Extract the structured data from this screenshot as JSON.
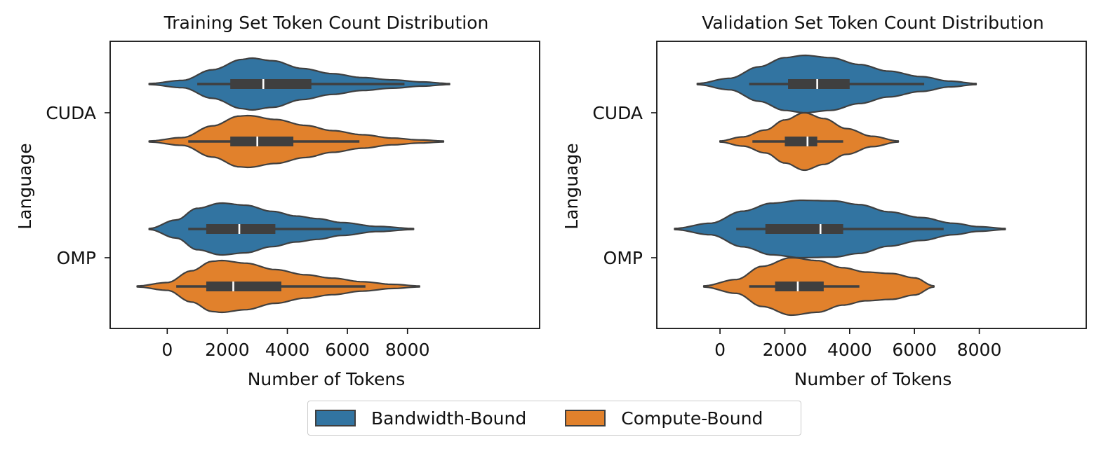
{
  "colors": {
    "bandwidth": "#3274a1",
    "compute": "#e1812c",
    "edge": "#3f3f3f"
  },
  "legend": {
    "items": [
      {
        "label": "Bandwidth-Bound",
        "color": "#3274a1"
      },
      {
        "label": "Compute-Bound",
        "color": "#e1812c"
      }
    ]
  },
  "chart_data": [
    {
      "type": "violin",
      "orientation": "horizontal",
      "title": "Training Set Token Count Distribution",
      "xlabel": "Number of Tokens",
      "ylabel": "Language",
      "categories": [
        "CUDA",
        "OMP"
      ],
      "xlim": [
        -1900,
        12400
      ],
      "xticks": [
        0,
        2000,
        4000,
        6000,
        8000
      ],
      "xtick_labels": [
        "0",
        "2000",
        "4000",
        "6000",
        "8000"
      ],
      "series": [
        {
          "name": "Bandwidth-Bound",
          "violins": [
            {
              "category": "CUDA",
              "min": -600,
              "max": 9400,
              "whisker_low": 1000,
              "whisker_high": 7900,
              "q1": 2100,
              "median": 3200,
              "q3": 4800,
              "density": [
                [
                  -600,
                  0.02
                ],
                [
                  500,
                  0.14
                ],
                [
                  1500,
                  0.55
                ],
                [
                  2500,
                  0.95
                ],
                [
                  2800,
                  1.0
                ],
                [
                  3500,
                  0.9
                ],
                [
                  4500,
                  0.6
                ],
                [
                  5500,
                  0.4
                ],
                [
                  6500,
                  0.25
                ],
                [
                  7500,
                  0.16
                ],
                [
                  8500,
                  0.08
                ],
                [
                  9400,
                  0.02
                ]
              ]
            },
            {
              "category": "OMP",
              "min": -600,
              "max": 8200,
              "whisker_low": 700,
              "whisker_high": 5800,
              "q1": 1300,
              "median": 2400,
              "q3": 3600,
              "density": [
                [
                  -600,
                  0.02
                ],
                [
                  300,
                  0.35
                ],
                [
                  1000,
                  0.8
                ],
                [
                  1800,
                  1.0
                ],
                [
                  2600,
                  0.92
                ],
                [
                  3500,
                  0.68
                ],
                [
                  4300,
                  0.5
                ],
                [
                  5000,
                  0.4
                ],
                [
                  5800,
                  0.25
                ],
                [
                  7000,
                  0.1
                ],
                [
                  8200,
                  0.02
                ]
              ]
            }
          ]
        },
        {
          "name": "Compute-Bound",
          "violins": [
            {
              "category": "CUDA",
              "min": -600,
              "max": 9200,
              "whisker_low": 700,
              "whisker_high": 6400,
              "q1": 2100,
              "median": 3000,
              "q3": 4200,
              "density": [
                [
                  -600,
                  0.02
                ],
                [
                  500,
                  0.15
                ],
                [
                  1500,
                  0.6
                ],
                [
                  2400,
                  0.98
                ],
                [
                  2700,
                  1.0
                ],
                [
                  3600,
                  0.85
                ],
                [
                  4600,
                  0.62
                ],
                [
                  5500,
                  0.42
                ],
                [
                  6500,
                  0.26
                ],
                [
                  7500,
                  0.13
                ],
                [
                  8400,
                  0.06
                ],
                [
                  9200,
                  0.02
                ]
              ]
            },
            {
              "category": "OMP",
              "min": -1000,
              "max": 8400,
              "whisker_low": 300,
              "whisker_high": 6600,
              "q1": 1300,
              "median": 2200,
              "q3": 3800,
              "density": [
                [
                  -1000,
                  0.02
                ],
                [
                  0,
                  0.15
                ],
                [
                  800,
                  0.6
                ],
                [
                  1500,
                  0.97
                ],
                [
                  1800,
                  1.0
                ],
                [
                  2600,
                  0.9
                ],
                [
                  3600,
                  0.65
                ],
                [
                  4600,
                  0.45
                ],
                [
                  5500,
                  0.32
                ],
                [
                  6500,
                  0.18
                ],
                [
                  7500,
                  0.08
                ],
                [
                  8400,
                  0.02
                ]
              ]
            }
          ]
        }
      ]
    },
    {
      "type": "violin",
      "orientation": "horizontal",
      "title": "Validation Set Token Count Distribution",
      "xlabel": "Number of Tokens",
      "ylabel": "Language",
      "categories": [
        "CUDA",
        "OMP"
      ],
      "xlim": [
        -1950,
        11300
      ],
      "xticks": [
        0,
        2000,
        4000,
        6000,
        8000
      ],
      "xtick_labels": [
        "0",
        "2000",
        "4000",
        "6000",
        "8000"
      ],
      "series": [
        {
          "name": "Bandwidth-Bound",
          "violins": [
            {
              "category": "CUDA",
              "min": -700,
              "max": 7900,
              "whisker_low": 900,
              "whisker_high": 6300,
              "q1": 2100,
              "median": 3000,
              "q3": 4000,
              "density": [
                [
                  -700,
                  0.02
                ],
                [
                  300,
                  0.2
                ],
                [
                  1200,
                  0.6
                ],
                [
                  2000,
                  0.92
                ],
                [
                  2600,
                  1.0
                ],
                [
                  3400,
                  0.92
                ],
                [
                  4300,
                  0.68
                ],
                [
                  5200,
                  0.45
                ],
                [
                  6200,
                  0.26
                ],
                [
                  7100,
                  0.1
                ],
                [
                  7900,
                  0.02
                ]
              ]
            },
            {
              "category": "OMP",
              "min": -1400,
              "max": 8800,
              "whisker_low": 500,
              "whisker_high": 6900,
              "q1": 1400,
              "median": 3100,
              "q3": 3800,
              "density": [
                [
                  -1400,
                  0.02
                ],
                [
                  -300,
                  0.2
                ],
                [
                  700,
                  0.62
                ],
                [
                  1600,
                  0.9
                ],
                [
                  2500,
                  1.0
                ],
                [
                  3500,
                  0.98
                ],
                [
                  4300,
                  0.85
                ],
                [
                  5200,
                  0.6
                ],
                [
                  6200,
                  0.4
                ],
                [
                  7200,
                  0.2
                ],
                [
                  8000,
                  0.08
                ],
                [
                  8800,
                  0.02
                ]
              ]
            }
          ]
        },
        {
          "name": "Compute-Bound",
          "violins": [
            {
              "category": "CUDA",
              "min": 0,
              "max": 5500,
              "whisker_low": 1000,
              "whisker_high": 3800,
              "q1": 2000,
              "median": 2700,
              "q3": 3000,
              "density": [
                [
                  0,
                  0.02
                ],
                [
                  700,
                  0.16
                ],
                [
                  1400,
                  0.4
                ],
                [
                  2000,
                  0.75
                ],
                [
                  2600,
                  1.0
                ],
                [
                  3200,
                  0.8
                ],
                [
                  3900,
                  0.45
                ],
                [
                  4700,
                  0.18
                ],
                [
                  5500,
                  0.02
                ]
              ]
            },
            {
              "category": "OMP",
              "min": -500,
              "max": 6600,
              "whisker_low": 900,
              "whisker_high": 4300,
              "q1": 1700,
              "median": 2400,
              "q3": 3200,
              "density": [
                [
                  -500,
                  0.02
                ],
                [
                  500,
                  0.24
                ],
                [
                  1300,
                  0.7
                ],
                [
                  2200,
                  1.0
                ],
                [
                  3000,
                  0.9
                ],
                [
                  3800,
                  0.65
                ],
                [
                  4500,
                  0.5
                ],
                [
                  5300,
                  0.45
                ],
                [
                  6000,
                  0.3
                ],
                [
                  6600,
                  0.02
                ]
              ]
            }
          ]
        }
      ]
    }
  ]
}
